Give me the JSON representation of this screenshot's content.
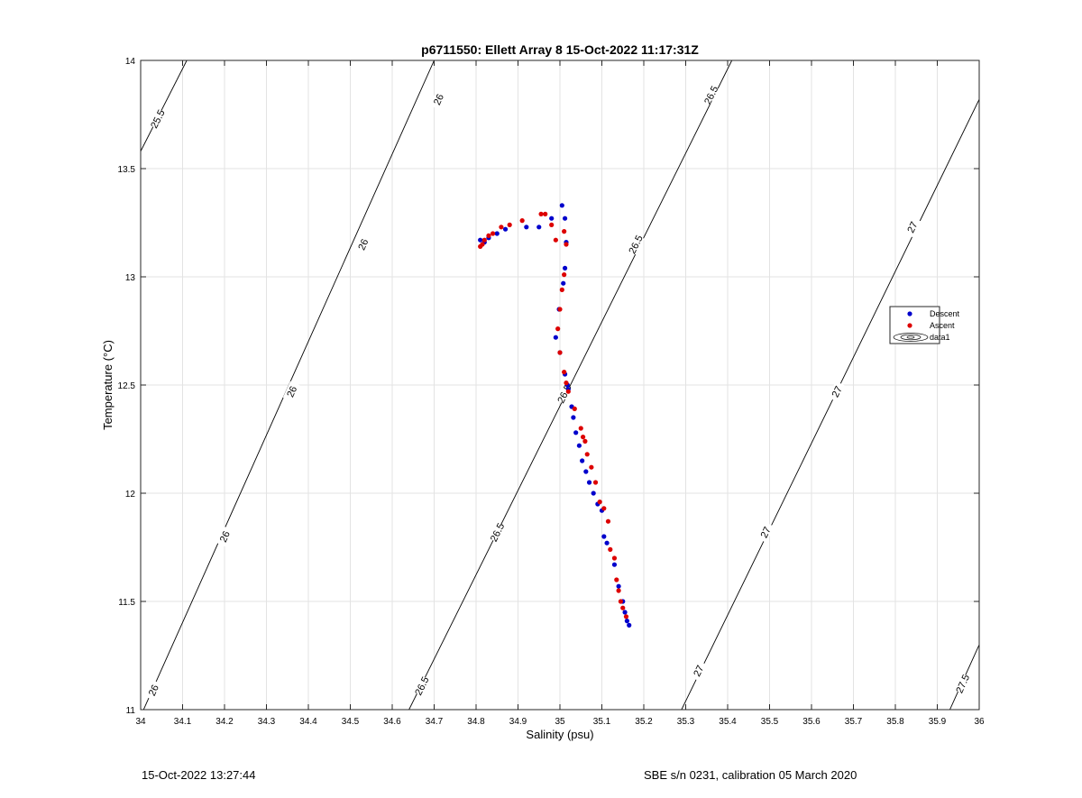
{
  "footer": {
    "timestamp": "15-Oct-2022 13:27:44",
    "instrument": "SBE s/n 0231, calibration 05 March 2020"
  },
  "chart_data": {
    "type": "scatter",
    "title": "p6711550: Ellett Array 8 15-Oct-2022 11:17:31Z",
    "xlabel": "Salinity (psu)",
    "ylabel": "Temperature (°C)",
    "xlim": [
      34,
      36
    ],
    "ylim": [
      11,
      14
    ],
    "xticks": [
      34,
      34.1,
      34.2,
      34.3,
      34.4,
      34.5,
      34.6,
      34.7,
      34.8,
      34.9,
      35,
      35.1,
      35.2,
      35.3,
      35.4,
      35.5,
      35.6,
      35.7,
      35.8,
      35.9,
      36
    ],
    "yticks": [
      11,
      11.5,
      12,
      12.5,
      13,
      13.5,
      14
    ],
    "grid": true,
    "legend_position": "right",
    "legend": [
      "Descent",
      "Ascent",
      "data1"
    ],
    "colors": {
      "descent": "#0000cc",
      "ascent": "#dd0000",
      "contour": "#000000",
      "grid": "#e3e3e3"
    },
    "series": [
      {
        "name": "Descent",
        "x": [
          34.81,
          34.82,
          34.83,
          34.85,
          34.87,
          34.92,
          34.95,
          34.98,
          35.005,
          35.012,
          35.015,
          35.012,
          35.008,
          34.998,
          34.99,
          35.0,
          35.012,
          35.018,
          35.02,
          35.028,
          35.032,
          35.038,
          35.046,
          35.053,
          35.062,
          35.07,
          35.08,
          35.09,
          35.1,
          35.105,
          35.112,
          35.13,
          35.14,
          35.15,
          35.155,
          35.16,
          35.165
        ],
        "y": [
          13.17,
          13.16,
          13.18,
          13.2,
          13.22,
          13.23,
          13.23,
          13.27,
          13.33,
          13.27,
          13.16,
          13.04,
          12.97,
          12.85,
          12.72,
          12.65,
          12.55,
          12.5,
          12.48,
          12.4,
          12.35,
          12.28,
          12.22,
          12.15,
          12.1,
          12.05,
          12.0,
          11.95,
          11.92,
          11.8,
          11.77,
          11.67,
          11.57,
          11.5,
          11.45,
          11.41,
          11.39
        ]
      },
      {
        "name": "Ascent",
        "x": [
          34.81,
          34.815,
          34.82,
          34.83,
          34.84,
          34.86,
          34.88,
          34.91,
          34.955,
          34.965,
          34.98,
          34.99,
          35.01,
          35.015,
          35.01,
          35.005,
          35.0,
          34.995,
          35.0,
          35.01,
          35.015,
          35.02,
          35.035,
          35.05,
          35.055,
          35.06,
          35.065,
          35.075,
          35.085,
          35.095,
          35.105,
          35.115,
          35.12,
          35.13,
          35.135,
          35.14,
          35.145,
          35.15,
          35.158
        ],
        "y": [
          13.14,
          13.15,
          13.17,
          13.19,
          13.2,
          13.23,
          13.24,
          13.26,
          13.29,
          13.29,
          13.24,
          13.17,
          13.21,
          13.15,
          13.01,
          12.94,
          12.85,
          12.76,
          12.65,
          12.56,
          12.51,
          12.47,
          12.39,
          12.3,
          12.26,
          12.24,
          12.18,
          12.12,
          12.05,
          11.96,
          11.93,
          11.87,
          11.74,
          11.7,
          11.6,
          11.55,
          11.5,
          11.47,
          11.43
        ]
      }
    ],
    "contours": [
      {
        "level": "25.5",
        "points": [
          [
            34,
            13.58
          ],
          [
            34.11,
            14
          ]
        ],
        "labels": [
          [
            34.04,
            13.73
          ]
        ]
      },
      {
        "level": "26",
        "points": [
          [
            34,
            10.97
          ],
          [
            34.7,
            14
          ]
        ],
        "labels": [
          [
            34.03,
            11.09
          ],
          [
            34.2,
            11.8
          ],
          [
            34.36,
            12.47
          ],
          [
            34.53,
            13.15
          ],
          [
            34.71,
            13.82
          ]
        ]
      },
      {
        "level": "26.5",
        "points": [
          [
            34.64,
            11
          ],
          [
            35.41,
            14
          ]
        ],
        "labels": [
          [
            34.67,
            11.11
          ],
          [
            34.85,
            11.82
          ],
          [
            35.01,
            12.46
          ],
          [
            35.18,
            13.15
          ],
          [
            35.36,
            13.84
          ]
        ]
      },
      {
        "level": "27",
        "points": [
          [
            35.29,
            11
          ],
          [
            36,
            13.82
          ]
        ],
        "labels": [
          [
            35.33,
            11.18
          ],
          [
            35.49,
            11.82
          ],
          [
            35.66,
            12.47
          ],
          [
            35.84,
            13.23
          ]
        ]
      },
      {
        "level": "27.5",
        "points": [
          [
            35.93,
            11
          ],
          [
            36,
            11.3
          ]
        ],
        "labels": [
          [
            35.96,
            11.12
          ]
        ]
      }
    ]
  }
}
